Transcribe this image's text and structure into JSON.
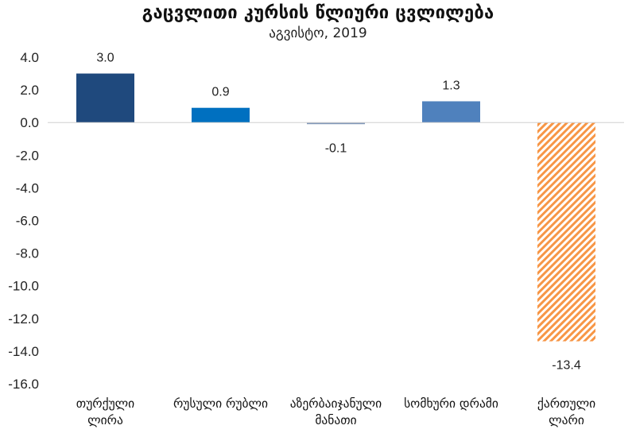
{
  "chart_data": {
    "type": "bar",
    "title": "გაცვლითი კურსის წლიური ცვლილება",
    "subtitle": "აგვისტო, 2019",
    "categories": [
      [
        "თურქული",
        "ლირა"
      ],
      [
        "რუსული რუბლი"
      ],
      [
        "აზერბაიჯანული",
        "მანათი"
      ],
      [
        "სომხური დრამი"
      ],
      [
        "ქართული",
        "ლარი"
      ]
    ],
    "values": [
      3.0,
      0.9,
      -0.1,
      1.3,
      -13.4
    ],
    "data_labels": [
      "3.0",
      "0.9",
      "-0.1",
      "1.3",
      "-13.4"
    ],
    "ylim": [
      -16,
      4
    ],
    "yticks": [
      4.0,
      2.0,
      0.0,
      -2.0,
      -4.0,
      -6.0,
      -8.0,
      -10.0,
      -12.0,
      -14.0,
      -16.0
    ],
    "ytick_labels": [
      "4.0",
      "2.0",
      "0.0",
      "-2.0",
      "-4.0",
      "-6.0",
      "-8.0",
      "-10.0",
      "-12.0",
      "-14.0",
      "-16.0"
    ],
    "grid": false,
    "colors": [
      "#1f497d",
      "#0070c0",
      "#7f96b8",
      "#4f81bd",
      "#f79646"
    ],
    "patterns": [
      "solid",
      "solid",
      "solid",
      "solid",
      "diagonal-hatch"
    ]
  }
}
